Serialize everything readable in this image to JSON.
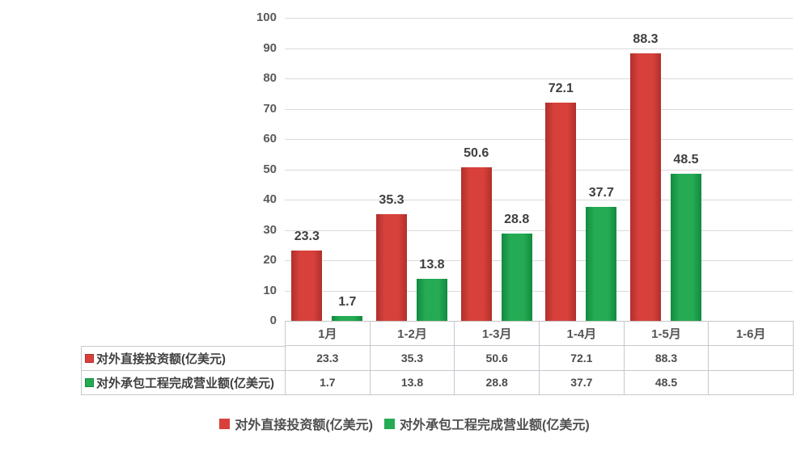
{
  "chart_data": {
    "type": "bar",
    "title": "",
    "xlabel": "",
    "ylabel": "",
    "categories": [
      "1月",
      "1-2月",
      "1-3月",
      "1-4月",
      "1-5月",
      "1-6月"
    ],
    "series": [
      {
        "name": "对外直接投资额(亿美元)",
        "values": [
          23.3,
          35.3,
          50.6,
          72.1,
          88.3,
          null
        ],
        "labels": [
          "23.3",
          "35.3",
          "50.6",
          "72.1",
          "88.3",
          ""
        ],
        "color": "#d8413b",
        "color_dark": "#b02f2c"
      },
      {
        "name": "对外承包工程完成营业额(亿美元)",
        "values": [
          1.7,
          13.8,
          28.8,
          37.7,
          48.5,
          null
        ],
        "labels": [
          "1.7",
          "13.8",
          "28.8",
          "37.7",
          "48.5",
          ""
        ],
        "color": "#25ab53",
        "color_dark": "#128a40"
      }
    ],
    "ylim": [
      0,
      100
    ],
    "yticks": [
      0,
      10,
      20,
      30,
      40,
      50,
      60,
      70,
      80,
      90,
      100
    ],
    "grid": true,
    "legend_position": "bottom",
    "data_table_shown": true
  },
  "legend": {
    "items": [
      {
        "label": "对外直接投资额(亿美元)",
        "color": "#d8413b"
      },
      {
        "label": "对外承包工程完成营业额(亿美元)",
        "color": "#25ab53"
      }
    ]
  },
  "colors": {
    "gridline": "#dadada",
    "axis_line": "#c6c6c6",
    "table_border": "#c4c9ce",
    "tick_text": "#595959",
    "label_text": "#3f3f3f"
  }
}
